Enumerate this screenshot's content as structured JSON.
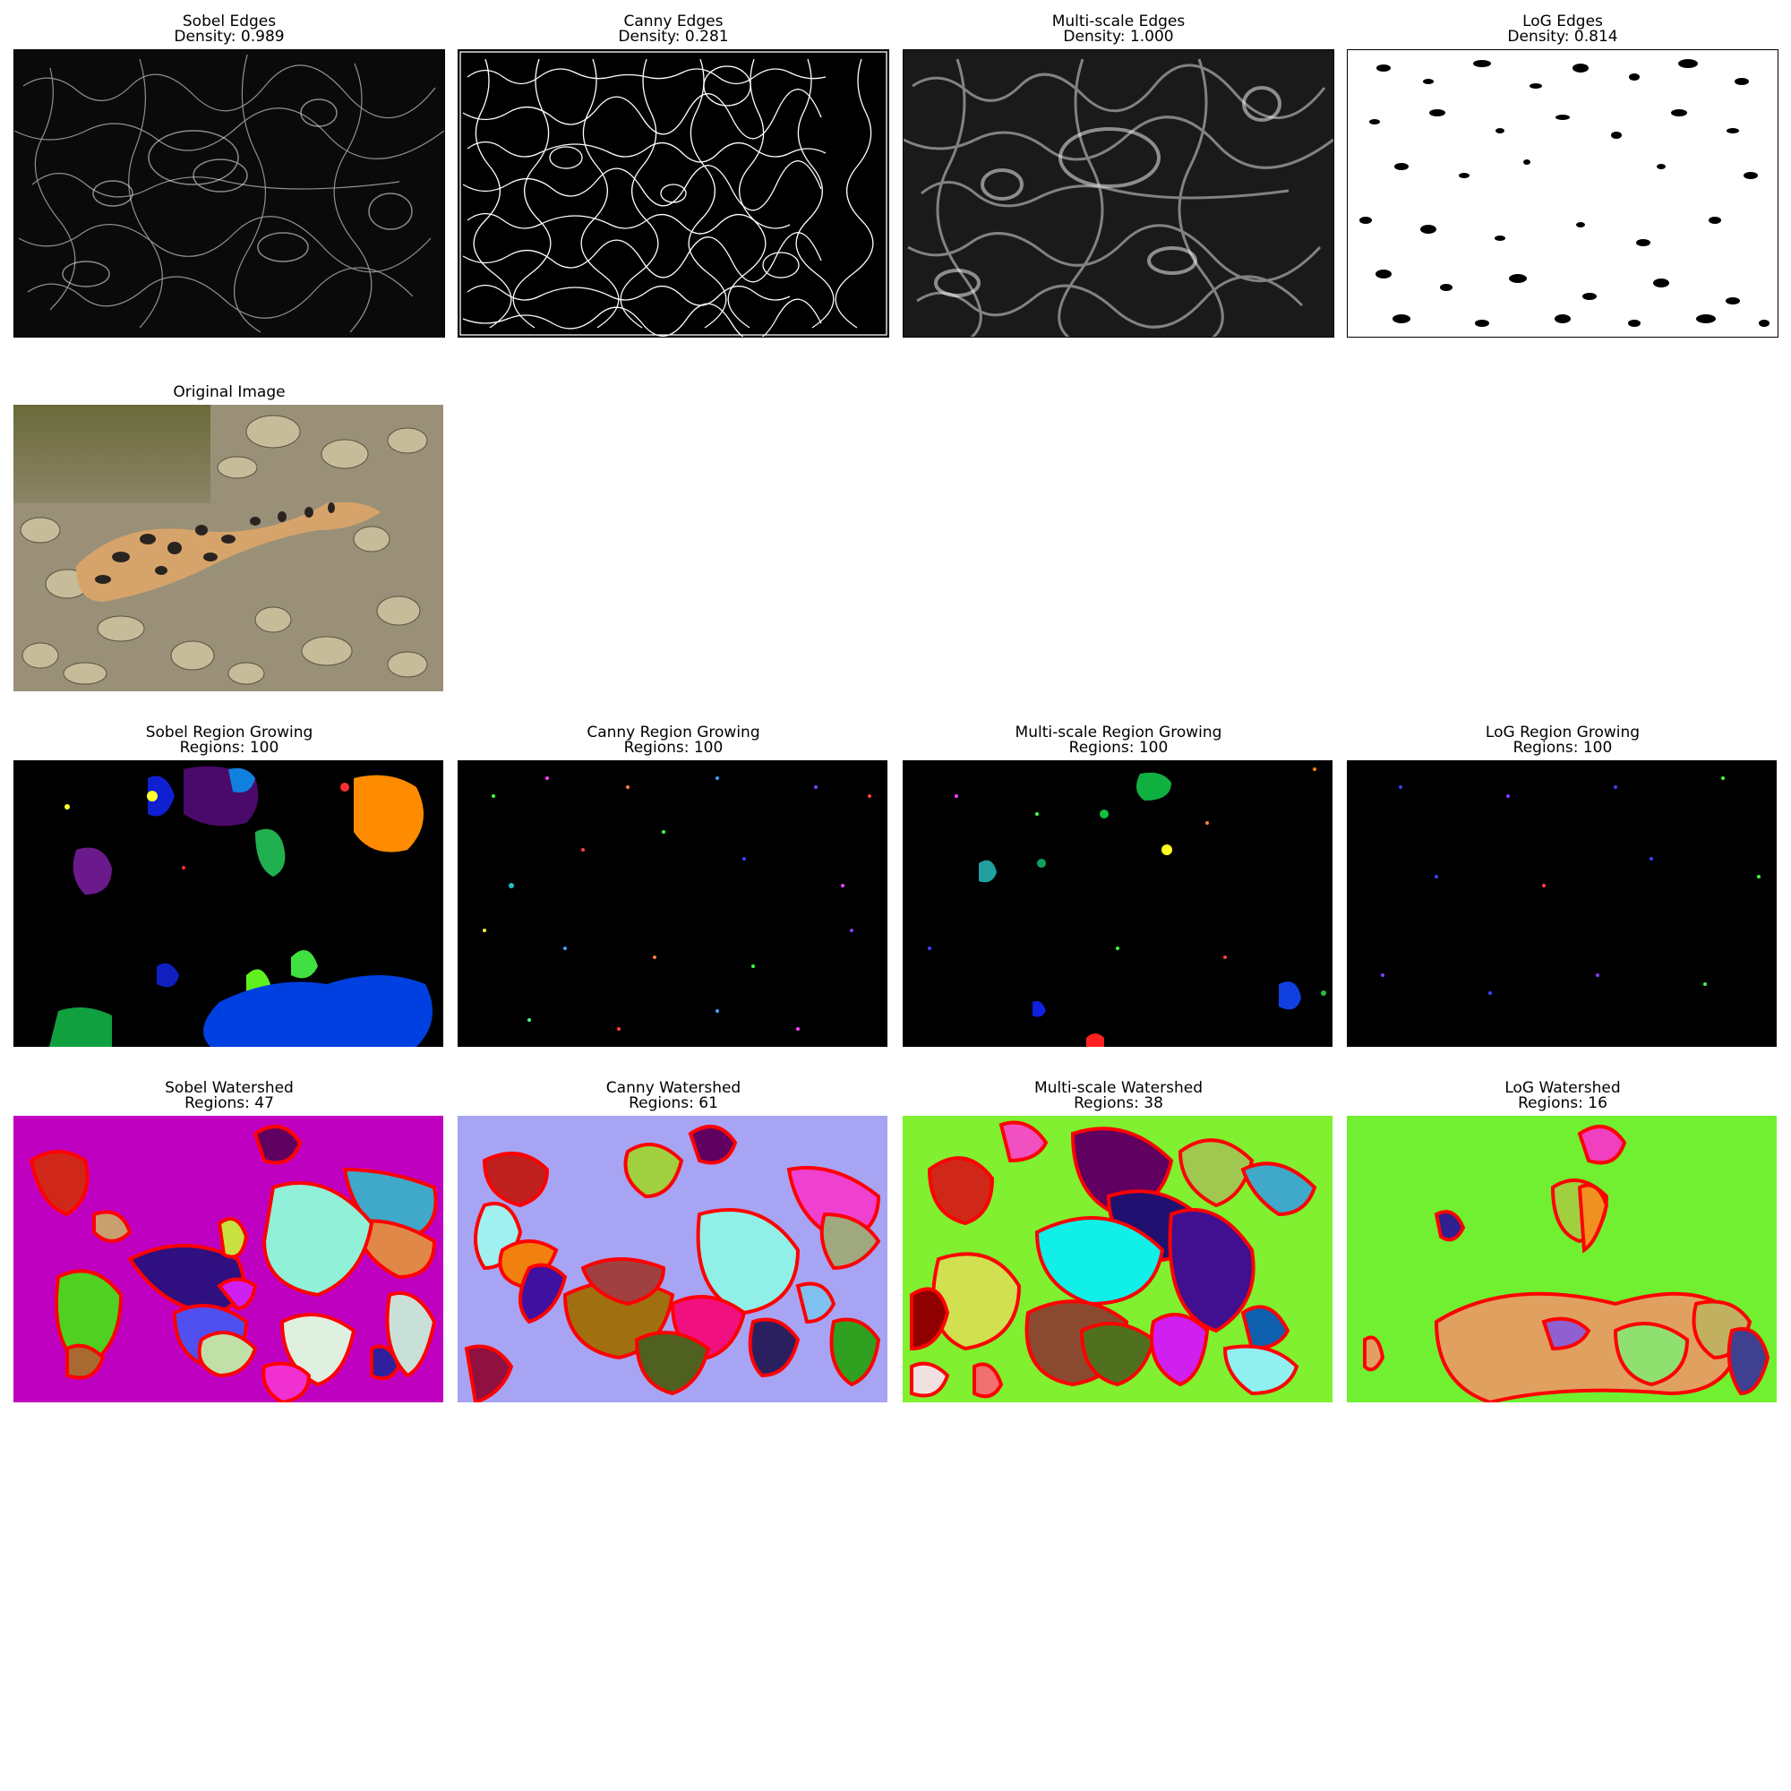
{
  "panels": {
    "sobel_edges": {
      "title": "Sobel Edges",
      "subtitle": "Density: 0.989"
    },
    "canny_edges": {
      "title": "Canny Edges",
      "subtitle": "Density: 0.281"
    },
    "multiscale_edges": {
      "title": "Multi-scale Edges",
      "subtitle": "Density: 1.000"
    },
    "log_edges": {
      "title": "LoG Edges",
      "subtitle": "Density: 0.814"
    },
    "original": {
      "title": "Original Image"
    },
    "sobel_rg": {
      "title": "Sobel Region Growing",
      "subtitle": "Regions: 100"
    },
    "canny_rg": {
      "title": "Canny Region Growing",
      "subtitle": "Regions: 100"
    },
    "multiscale_rg": {
      "title": "Multi-scale Region Growing",
      "subtitle": "Regions: 100"
    },
    "log_rg": {
      "title": "LoG Region Growing",
      "subtitle": "Regions: 100"
    },
    "sobel_ws": {
      "title": "Sobel Watershed",
      "subtitle": "Regions: 47"
    },
    "canny_ws": {
      "title": "Canny Watershed",
      "subtitle": "Regions: 61"
    },
    "multiscale_ws": {
      "title": "Multi-scale Watershed",
      "subtitle": "Regions: 38"
    },
    "log_ws": {
      "title": "LoG Watershed",
      "subtitle": "Regions: 16"
    }
  },
  "colors": {
    "edge_bg": "#000000",
    "boundary": "#ff0000",
    "sobel_ws_bg": "#c000c0",
    "canny_ws_bg": "#a8a4f4",
    "multiscale_ws_bg": "#80f030",
    "log_ws_bg": "#70f030"
  }
}
